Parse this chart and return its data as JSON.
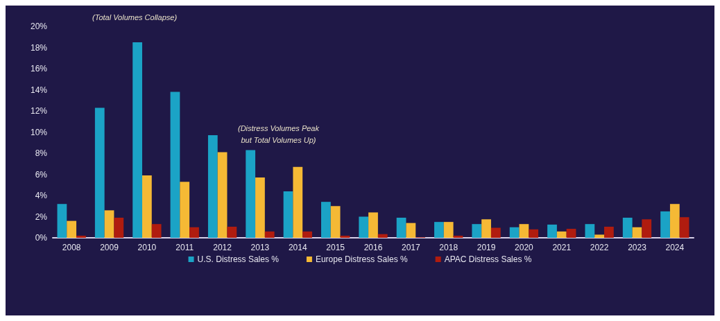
{
  "chart_data": {
    "type": "bar",
    "categories": [
      "2008",
      "2009",
      "2010",
      "2011",
      "2012",
      "2013",
      "2014",
      "2015",
      "2016",
      "2017",
      "2018",
      "2019",
      "2020",
      "2021",
      "2022",
      "2023",
      "2024"
    ],
    "series": [
      {
        "name": "U.S. Distress Sales %",
        "color": "#1ba3c6",
        "values": [
          3.2,
          12.3,
          18.5,
          13.8,
          9.7,
          8.3,
          4.4,
          3.4,
          2.0,
          1.9,
          1.5,
          1.3,
          1.0,
          1.25,
          1.3,
          1.9,
          2.5
        ]
      },
      {
        "name": "Europe Distress Sales %",
        "color": "#f5b935",
        "values": [
          1.6,
          2.6,
          5.9,
          5.3,
          8.1,
          5.7,
          6.7,
          3.0,
          2.4,
          1.4,
          1.5,
          1.75,
          1.3,
          0.6,
          0.3,
          1.0,
          3.2
        ]
      },
      {
        "name": "APAC Distress Sales %",
        "color": "#b01c0f",
        "values": [
          0.2,
          1.9,
          1.3,
          1.0,
          1.05,
          0.6,
          0.6,
          0.2,
          0.35,
          0.05,
          0.2,
          0.95,
          0.8,
          0.85,
          1.05,
          1.75,
          1.95
        ]
      }
    ],
    "ylim": [
      0,
      20
    ],
    "yticks": [
      {
        "value": 0,
        "label": "0%"
      },
      {
        "value": 2,
        "label": "2%"
      },
      {
        "value": 4,
        "label": "4%"
      },
      {
        "value": 6,
        "label": "6%"
      },
      {
        "value": 8,
        "label": "8%"
      },
      {
        "value": 10,
        "label": "10%"
      },
      {
        "value": 12,
        "label": "12%"
      },
      {
        "value": 14,
        "label": "14%"
      },
      {
        "value": 16,
        "label": "16%"
      },
      {
        "value": 18,
        "label": "18%"
      },
      {
        "value": 20,
        "label": "20%"
      }
    ],
    "annotations": [
      "(Total Volumes Collapse)",
      "(Distress Volumes Peak\nbut Total Volumes Up)"
    ],
    "grid": false,
    "legend": "bottom"
  }
}
